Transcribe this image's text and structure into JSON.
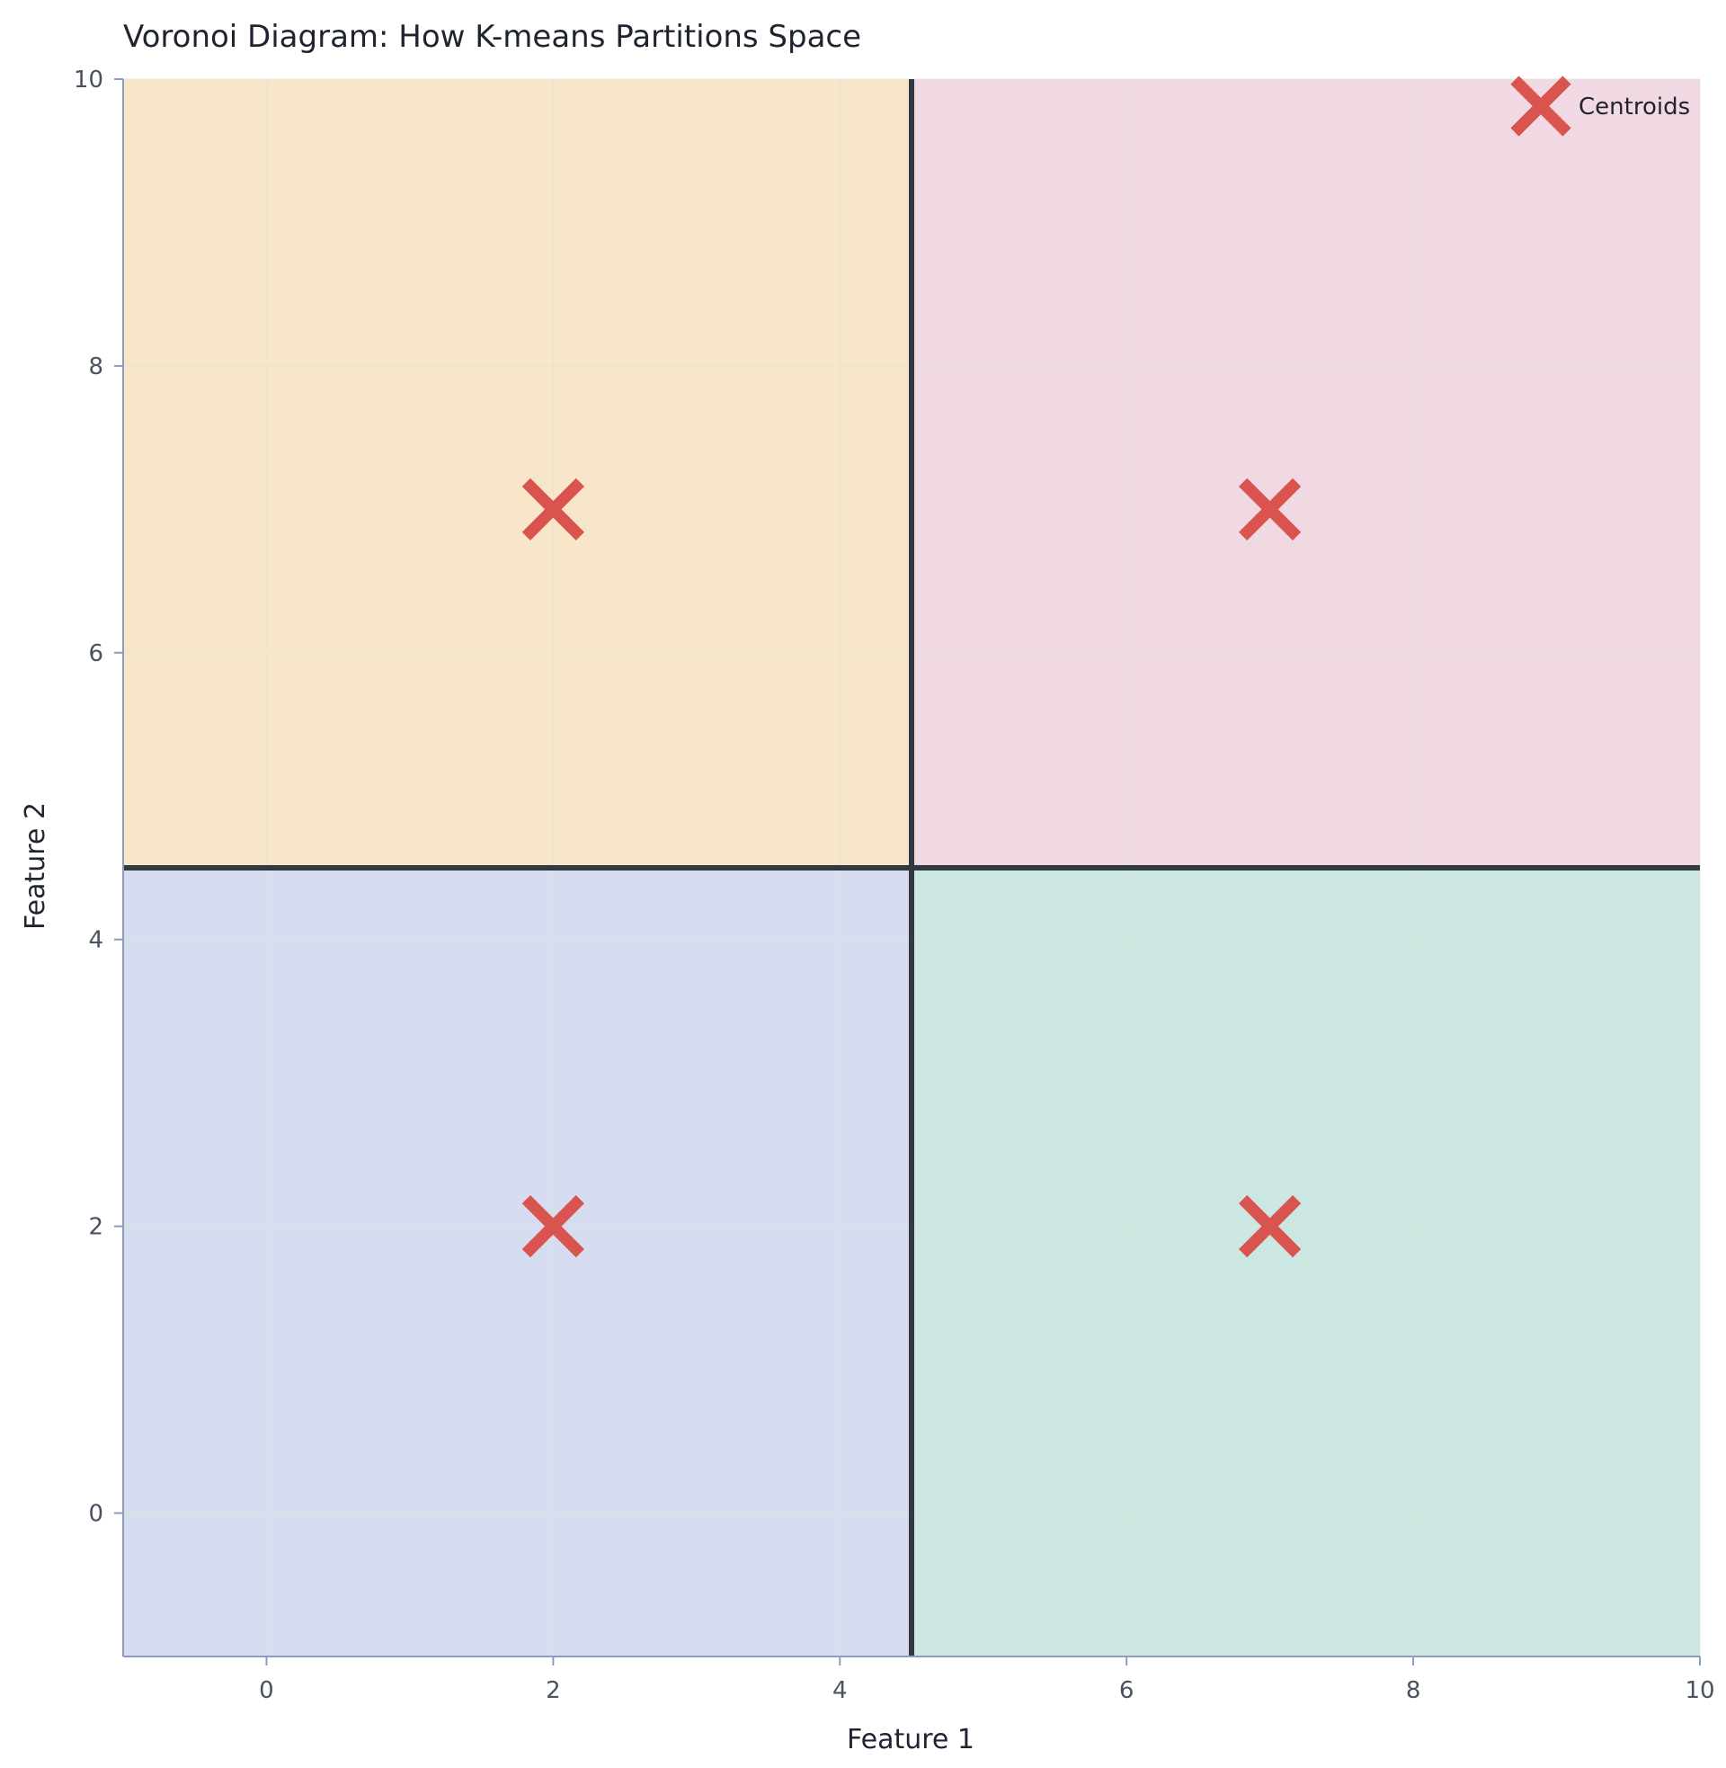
{
  "chart_data": {
    "type": "scatter",
    "title": "Voronoi Diagram: How K-means Partitions Space",
    "xlabel": "Feature 1",
    "ylabel": "Feature 2",
    "xlim": [
      -1,
      10
    ],
    "ylim": [
      -1,
      10
    ],
    "x_ticks": [
      0,
      2,
      4,
      6,
      8,
      10
    ],
    "y_ticks": [
      0,
      2,
      4,
      6,
      8,
      10
    ],
    "grid": true,
    "legend_position": "top-right",
    "boundaries": {
      "vertical_x": 4.5,
      "horizontal_y": 4.5
    },
    "regions": [
      {
        "quadrant": "top-left",
        "color": "#f7e6c9"
      },
      {
        "quadrant": "top-right",
        "color": "#f1d9e3"
      },
      {
        "quadrant": "bottom-left",
        "color": "#d6ddf0"
      },
      {
        "quadrant": "bottom-right",
        "color": "#cce6e2"
      }
    ],
    "series": [
      {
        "name": "Centroids",
        "marker": "x",
        "color": "#d9534f",
        "points": [
          {
            "x": 2,
            "y": 7
          },
          {
            "x": 7,
            "y": 7
          },
          {
            "x": 2,
            "y": 2
          },
          {
            "x": 7,
            "y": 2
          }
        ]
      }
    ],
    "colors": {
      "boundary": "#333942",
      "axis": "#8c9cc0",
      "grid": "#e6e1d6"
    }
  }
}
